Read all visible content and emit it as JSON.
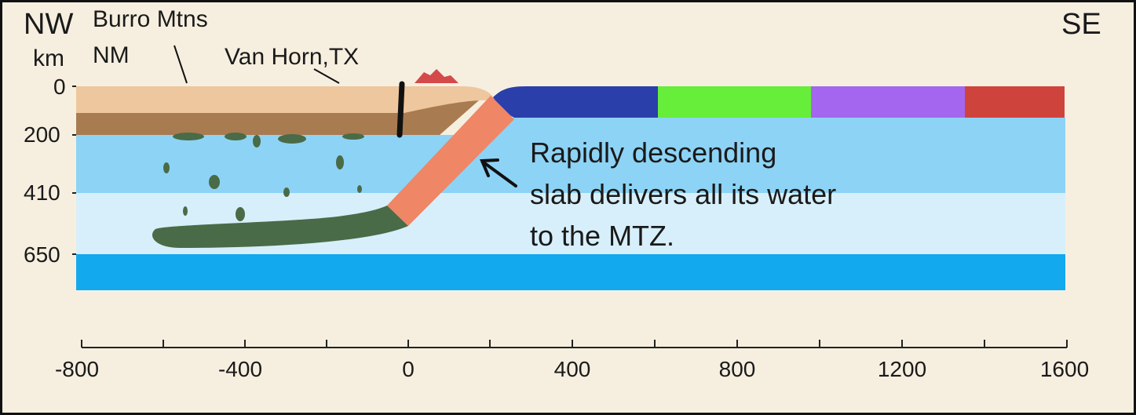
{
  "direction": {
    "left": "NW",
    "right": "SE"
  },
  "units_label": "km",
  "places": {
    "burro_line1": "Burro Mtns",
    "burro_line2": "NM",
    "van_horn": "Van Horn,TX"
  },
  "depth_ticks": [
    "0",
    "200",
    "410",
    "650"
  ],
  "distance_ticks": [
    "-800",
    "-400",
    "0",
    "400",
    "800",
    "1200",
    "1600"
  ],
  "annotation": {
    "line1": "Rapidly descending",
    "line2": "slab delivers all its water",
    "line3": "to the MTZ."
  },
  "colors": {
    "background": "#f6efe0",
    "crust": "#eec79e",
    "lithosphere": "#a97b50",
    "upper_mantle": "#8dd3f5",
    "transition_zone": "#d7effa",
    "lower_mantle": "#12a9ee",
    "subducting_slab": "#ef8666",
    "flat_slab": "#4a6b47",
    "plate_blue": "#2a3faa",
    "plate_green": "#66ee3a",
    "plate_purple": "#a466ee",
    "plate_red": "#cf433d",
    "volcano": "#d44a4a"
  }
}
